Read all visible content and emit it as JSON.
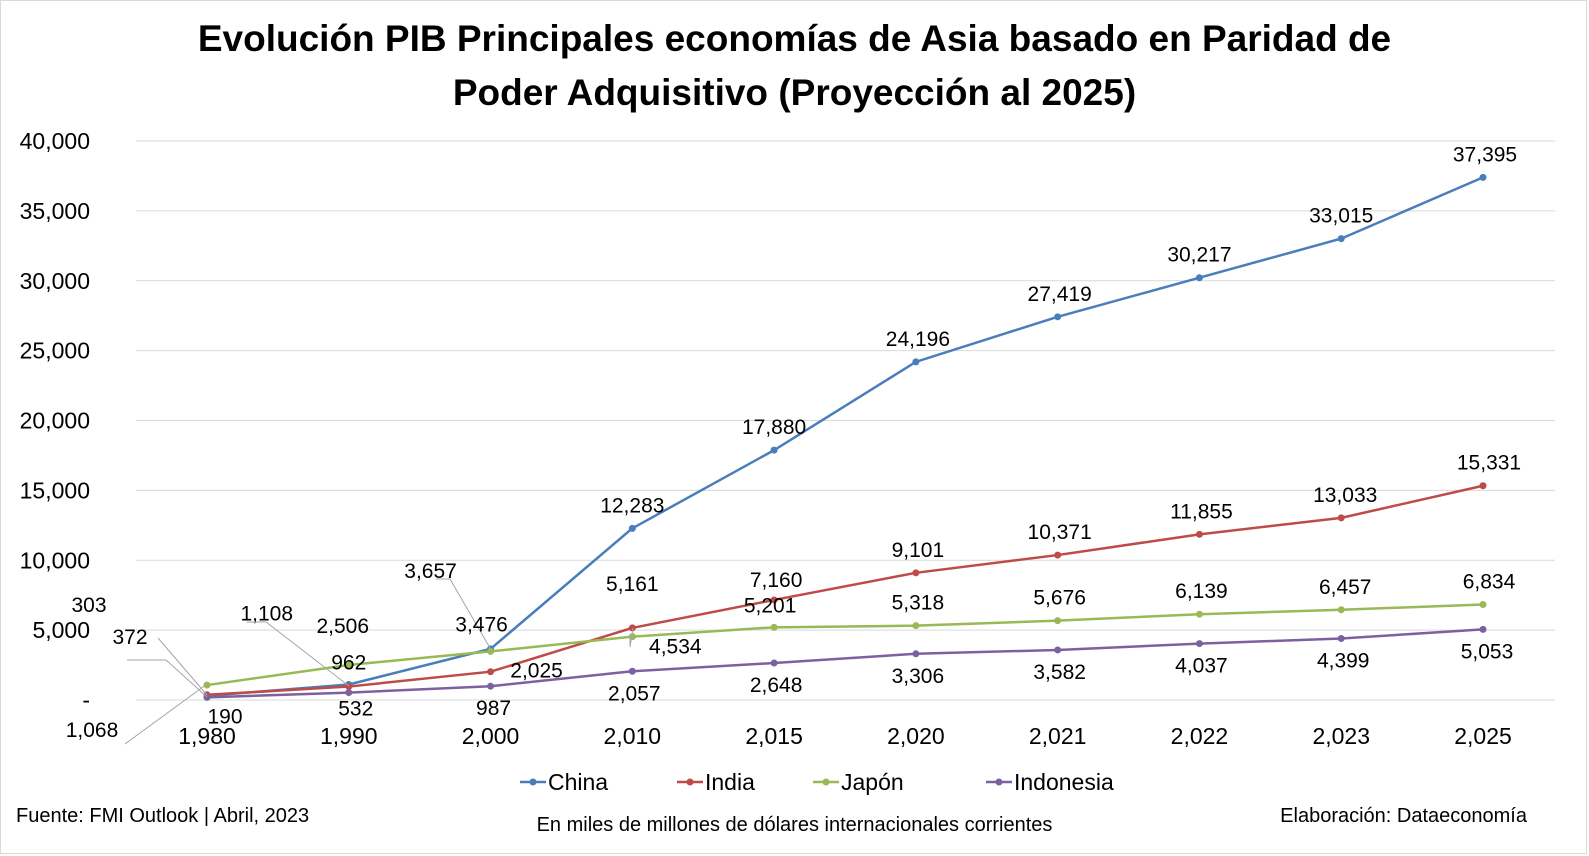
{
  "chart_data": {
    "type": "line",
    "title_lines": [
      "Evolución PIB Principales economías de Asia basado en Paridad de",
      "Poder Adquisitivo (Proyección al 2025)"
    ],
    "categories": [
      "1,980",
      "1,990",
      "2,000",
      "2,010",
      "2,015",
      "2,020",
      "2,021",
      "2,022",
      "2,023",
      "2,025"
    ],
    "y_ticks": [
      "-",
      "5,000",
      "10,000",
      "15,000",
      "20,000",
      "25,000",
      "30,000",
      "35,000",
      "40,000"
    ],
    "ylim": [
      0,
      40000
    ],
    "grid": true,
    "legend_position": "bottom",
    "series": [
      {
        "name": "China",
        "color": "#4a7ebb",
        "values": [
          303,
          1108,
          3657,
          12283,
          17880,
          24196,
          27419,
          30217,
          33015,
          37395
        ],
        "labels": [
          "303",
          "1,108",
          "3,657",
          "12,283",
          "17,880",
          "24,196",
          "27,419",
          "30,217",
          "33,015",
          "37,395"
        ]
      },
      {
        "name": "India",
        "color": "#be4b48",
        "values": [
          372,
          962,
          2025,
          5161,
          7160,
          9101,
          10371,
          11855,
          13033,
          15331
        ],
        "labels": [
          "372",
          "962",
          "2,025",
          "5,161",
          "7,160",
          "9,101",
          "10,371",
          "11,855",
          "13,033",
          "15,331"
        ]
      },
      {
        "name": "Japón",
        "color": "#98b954",
        "values": [
          1068,
          2506,
          3476,
          4534,
          5201,
          5318,
          5676,
          6139,
          6457,
          6834
        ],
        "labels": [
          "1,068",
          "2,506",
          "3,476",
          "4,534",
          "5,201",
          "5,318",
          "5,676",
          "6,139",
          "6,457",
          "6,834"
        ]
      },
      {
        "name": "Indonesia",
        "color": "#7d60a0",
        "values": [
          190,
          532,
          987,
          2057,
          2648,
          3306,
          3582,
          4037,
          4399,
          5053
        ],
        "labels": [
          "190",
          "532",
          "987",
          "2,057",
          "2,648",
          "3,306",
          "3,582",
          "4,037",
          "4,399",
          "5,053"
        ]
      }
    ]
  },
  "footer": {
    "source": "Fuente: FMI Outlook | Abril, 2023",
    "units": "En miles de millones de dólares internacionales corrientes",
    "credit": "Elaboración: Dataeconomía"
  }
}
